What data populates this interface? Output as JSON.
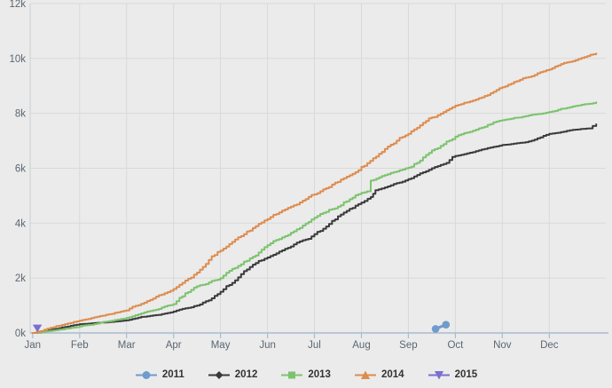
{
  "chart": {
    "background": "#ebebeb",
    "grid_color": "#d9d9d9",
    "plot_border_color": "#c9cdd2",
    "axis_line_color": "#aabccd",
    "tick_color": "#aabccd",
    "axis_label_color": "#5b6670",
    "legend_text_color": "#333333"
  },
  "chart_data": {
    "type": "line",
    "title": "",
    "xlabel": "",
    "ylabel": "",
    "x_tick_labels": [
      "Jan",
      "Feb",
      "Mar",
      "Apr",
      "May",
      "Jun",
      "Jul",
      "Aug",
      "Sep",
      "Oct",
      "Nov",
      "Dec"
    ],
    "y_tick_labels": [
      "0k",
      "2k",
      "4k",
      "6k",
      "8k",
      "10k",
      "12k"
    ],
    "ylim_thousands": [
      0,
      12
    ],
    "x_span_months": 12,
    "grid": true,
    "legend_position": "bottom-center",
    "values_unit": "thousands (k)",
    "series": [
      {
        "name": "2011",
        "color": "#6f9bcd",
        "marker": "circle",
        "style": "markers-line",
        "points_month_valueK": [
          [
            8.58,
            0.15
          ],
          [
            8.8,
            0.3
          ]
        ]
      },
      {
        "name": "2012",
        "color": "#3a3a3a",
        "marker": "diamond",
        "style": "line",
        "points_month_valueK": [
          [
            0,
            0
          ],
          [
            0.5,
            0.15
          ],
          [
            1,
            0.32
          ],
          [
            1.5,
            0.38
          ],
          [
            2,
            0.46
          ],
          [
            2.5,
            0.62
          ],
          [
            3,
            0.78
          ],
          [
            3.5,
            1.0
          ],
          [
            4,
            1.5
          ],
          [
            4.5,
            2.25
          ],
          [
            5,
            2.75
          ],
          [
            5.5,
            3.15
          ],
          [
            6,
            3.6
          ],
          [
            6.5,
            4.25
          ],
          [
            7,
            4.75
          ],
          [
            7.2,
            4.95
          ],
          [
            7.3,
            5.2
          ],
          [
            7.5,
            5.3
          ],
          [
            8,
            5.6
          ],
          [
            8.5,
            6.0
          ],
          [
            9,
            6.45
          ],
          [
            9.5,
            6.65
          ],
          [
            10,
            6.85
          ],
          [
            10.5,
            6.95
          ],
          [
            11,
            7.25
          ],
          [
            11.5,
            7.4
          ],
          [
            11.85,
            7.45
          ],
          [
            12,
            7.6
          ]
        ]
      },
      {
        "name": "2013",
        "color": "#7cc36e",
        "marker": "square",
        "style": "line",
        "points_month_valueK": [
          [
            0,
            0
          ],
          [
            0.5,
            0.1
          ],
          [
            1,
            0.24
          ],
          [
            1.5,
            0.4
          ],
          [
            2,
            0.55
          ],
          [
            2.5,
            0.8
          ],
          [
            3,
            1.05
          ],
          [
            3.5,
            1.7
          ],
          [
            4,
            2.0
          ],
          [
            4.5,
            2.6
          ],
          [
            5,
            3.2
          ],
          [
            5.5,
            3.65
          ],
          [
            6,
            4.2
          ],
          [
            6.5,
            4.6
          ],
          [
            7,
            5.1
          ],
          [
            7.12,
            5.16
          ],
          [
            7.2,
            5.55
          ],
          [
            7.5,
            5.75
          ],
          [
            8,
            6.02
          ],
          [
            8.5,
            6.65
          ],
          [
            9,
            7.15
          ],
          [
            9.5,
            7.45
          ],
          [
            10,
            7.75
          ],
          [
            10.5,
            7.9
          ],
          [
            11,
            8.05
          ],
          [
            11.5,
            8.25
          ],
          [
            12,
            8.4
          ]
        ]
      },
      {
        "name": "2014",
        "color": "#dd8c4f",
        "marker": "triangle-up",
        "style": "line",
        "points_month_valueK": [
          [
            0,
            0
          ],
          [
            0.5,
            0.25
          ],
          [
            1,
            0.45
          ],
          [
            1.5,
            0.63
          ],
          [
            2,
            0.82
          ],
          [
            2.5,
            1.2
          ],
          [
            3,
            1.6
          ],
          [
            3.5,
            2.2
          ],
          [
            4,
            3.0
          ],
          [
            4.5,
            3.6
          ],
          [
            5,
            4.15
          ],
          [
            5.5,
            4.6
          ],
          [
            6,
            5.05
          ],
          [
            6.5,
            5.5
          ],
          [
            7,
            6.05
          ],
          [
            7.5,
            6.7
          ],
          [
            8,
            7.25
          ],
          [
            8.5,
            7.85
          ],
          [
            9,
            8.28
          ],
          [
            9.5,
            8.55
          ],
          [
            10,
            8.95
          ],
          [
            10.5,
            9.3
          ],
          [
            11,
            9.6
          ],
          [
            11.5,
            9.9
          ],
          [
            12,
            10.18
          ]
        ]
      },
      {
        "name": "2015",
        "color": "#7a6fd0",
        "marker": "triangle-down",
        "style": "markers",
        "points_month_valueK": [
          [
            0.1,
            0.18
          ]
        ]
      }
    ]
  }
}
